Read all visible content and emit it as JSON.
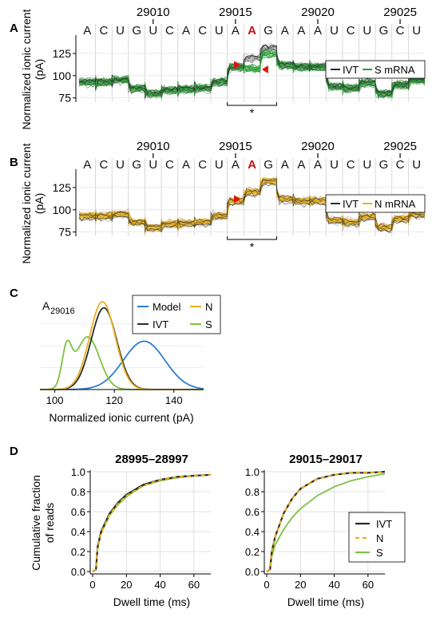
{
  "panels": {
    "A": {
      "letter": "A",
      "positions": [
        "29010",
        "29015",
        "29020",
        "29025"
      ],
      "bases": [
        "A",
        "C",
        "U",
        "G",
        "U",
        "C",
        "A",
        "C",
        "U",
        "A",
        "A",
        "G",
        "A",
        "A",
        "A",
        "U",
        "C",
        "U",
        "G",
        "C",
        "U"
      ],
      "highlight_base": "A",
      "ylabel": "Normalized ionic current (pA)",
      "yticks": [
        "75",
        "100",
        "125"
      ],
      "legend": [
        "IVT",
        "S mRNA"
      ],
      "star": "*"
    },
    "B": {
      "letter": "B",
      "positions": [
        "29010",
        "29015",
        "29020",
        "29025"
      ],
      "bases": [
        "A",
        "C",
        "U",
        "G",
        "U",
        "C",
        "A",
        "C",
        "U",
        "A",
        "A",
        "G",
        "A",
        "A",
        "A",
        "U",
        "C",
        "U",
        "G",
        "C",
        "U"
      ],
      "highlight_base": "A",
      "ylabel": "Normalized ionic current (pA)",
      "yticks": [
        "75",
        "100",
        "125"
      ],
      "legend": [
        "IVT",
        "N mRNA"
      ],
      "star": "*"
    },
    "C": {
      "letter": "C",
      "title": "A",
      "title_sub": "29016",
      "xlabel": "Normalized ionic current (pA)",
      "xticks": [
        "100",
        "120",
        "140"
      ],
      "legend": [
        "Model",
        "N",
        "IVT",
        "S"
      ]
    },
    "D": {
      "letter": "D",
      "ylabel_line1": "Cumulative fraction",
      "ylabel_line2": "of reads",
      "left_title": "28995–28997",
      "right_title": "29015–29017",
      "xlabel": "Dwell time (ms)",
      "yticks": [
        "0.0",
        "0.2",
        "0.4",
        "0.6",
        "0.8",
        "1.0"
      ],
      "xticks": [
        "0",
        "20",
        "40",
        "60"
      ],
      "legend": [
        "IVT",
        "N",
        "S"
      ]
    }
  },
  "colors": {
    "ivt": "#2b2b2b",
    "s": "#2e9e3a",
    "s_light": "#7cc242",
    "n": "#e8b020",
    "model": "#2a7fd4",
    "highlight": "#d01010",
    "arrow": "#e01010"
  },
  "chart_data": [
    {
      "type": "line",
      "panel": "A",
      "description": "Ionic current traces per base position",
      "x": [
        "A",
        "C",
        "U",
        "G",
        "U",
        "C",
        "A",
        "C",
        "U",
        "A",
        "A",
        "G",
        "A",
        "A",
        "A",
        "U",
        "C",
        "U",
        "G",
        "C",
        "U"
      ],
      "series": [
        {
          "name": "IVT",
          "values": [
            93,
            93,
            95,
            86,
            80,
            84,
            85,
            86,
            93,
            110,
            120,
            132,
            112,
            110,
            110,
            88,
            86,
            92,
            80,
            90,
            95
          ]
        },
        {
          "name": "S mRNA",
          "values": [
            93,
            93,
            96,
            86,
            80,
            84,
            85,
            86,
            93,
            110,
            108,
            125,
            112,
            110,
            110,
            88,
            86,
            92,
            80,
            90,
            95
          ]
        }
      ],
      "ylim": [
        72,
        142
      ]
    },
    {
      "type": "line",
      "panel": "B",
      "x": [
        "A",
        "C",
        "U",
        "G",
        "U",
        "C",
        "A",
        "C",
        "U",
        "A",
        "A",
        "G",
        "A",
        "A",
        "A",
        "U",
        "C",
        "U",
        "G",
        "C",
        "U"
      ],
      "series": [
        {
          "name": "IVT",
          "values": [
            93,
            93,
            95,
            86,
            80,
            84,
            85,
            86,
            93,
            110,
            120,
            132,
            112,
            110,
            110,
            88,
            86,
            92,
            80,
            90,
            95
          ]
        },
        {
          "name": "N mRNA",
          "values": [
            93,
            93,
            95,
            86,
            80,
            84,
            85,
            86,
            93,
            110,
            120,
            132,
            112,
            110,
            110,
            88,
            86,
            92,
            80,
            90,
            95
          ]
        }
      ],
      "ylim": [
        72,
        142
      ]
    },
    {
      "type": "line",
      "panel": "C",
      "xlabel": "Normalized ionic current (pA)",
      "xlim": [
        95,
        150
      ],
      "series": [
        {
          "name": "Model",
          "mean": 130,
          "sd": 7,
          "peak": 0.55
        },
        {
          "name": "N",
          "mean": 116,
          "sd": 4.3,
          "peak": 1.0
        },
        {
          "name": "IVT",
          "mean": 116.5,
          "sd": 4.3,
          "peak": 0.93
        },
        {
          "name": "S",
          "components": [
            {
              "mean": 104,
              "sd": 1.6,
              "peak": 0.42
            },
            {
              "mean": 111,
              "sd": 4,
              "peak": 0.6
            }
          ]
        }
      ]
    },
    {
      "type": "line",
      "panel": "D-left",
      "title": "28995–28997",
      "xlabel": "Dwell time (ms)",
      "xlim": [
        0,
        70
      ],
      "ylim": [
        0,
        1
      ],
      "x": [
        0,
        2,
        3,
        5,
        10,
        15,
        20,
        30,
        40,
        50,
        60,
        70
      ],
      "series": [
        {
          "name": "IVT",
          "values": [
            0,
            0.02,
            0.25,
            0.4,
            0.58,
            0.69,
            0.77,
            0.87,
            0.92,
            0.95,
            0.96,
            0.97
          ]
        },
        {
          "name": "N",
          "values": [
            0,
            0.02,
            0.24,
            0.39,
            0.57,
            0.68,
            0.76,
            0.86,
            0.92,
            0.95,
            0.96,
            0.97
          ]
        },
        {
          "name": "S",
          "values": [
            0,
            0.02,
            0.23,
            0.38,
            0.56,
            0.67,
            0.75,
            0.86,
            0.91,
            0.94,
            0.96,
            0.97
          ]
        }
      ]
    },
    {
      "type": "line",
      "panel": "D-right",
      "title": "29015–29017",
      "xlabel": "Dwell time (ms)",
      "xlim": [
        0,
        70
      ],
      "ylim": [
        0,
        1
      ],
      "x": [
        0,
        2,
        3,
        5,
        10,
        15,
        20,
        30,
        40,
        50,
        60,
        70
      ],
      "series": [
        {
          "name": "IVT",
          "values": [
            0,
            0.02,
            0.2,
            0.35,
            0.58,
            0.73,
            0.83,
            0.93,
            0.97,
            0.99,
            0.99,
            1.0
          ]
        },
        {
          "name": "N",
          "values": [
            0,
            0.02,
            0.2,
            0.35,
            0.58,
            0.73,
            0.83,
            0.93,
            0.97,
            0.99,
            0.99,
            1.0
          ]
        },
        {
          "name": "S",
          "values": [
            0,
            0.02,
            0.15,
            0.27,
            0.42,
            0.54,
            0.63,
            0.76,
            0.85,
            0.91,
            0.95,
            0.98
          ]
        }
      ]
    }
  ]
}
